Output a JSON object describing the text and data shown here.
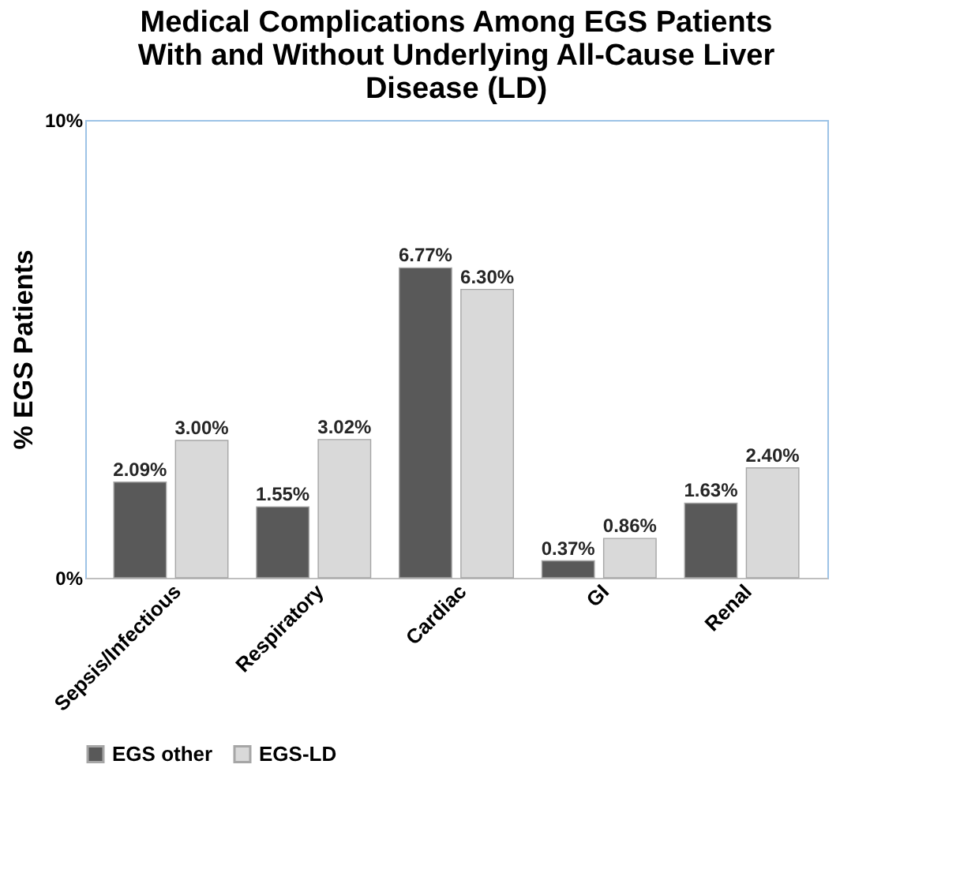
{
  "chart_data": {
    "type": "bar",
    "title": "Medical Complications Among EGS Patients With and Without Underlying All-Cause Liver Disease (LD)",
    "ylabel": "% EGS Patients",
    "categories": [
      "Sepsis/Infectious",
      "Respiratory",
      "Cardiac",
      "GI",
      "Renal"
    ],
    "series": [
      {
        "name": "EGS other",
        "color": "#595959",
        "values": [
          2.09,
          1.55,
          6.77,
          0.37,
          1.63
        ],
        "value_labels": [
          "2.09%",
          "1.55%",
          "6.77%",
          "0.37%",
          "1.63%"
        ]
      },
      {
        "name": "EGS-LD",
        "color": "#d9d9d9",
        "values": [
          3.0,
          3.02,
          6.3,
          0.86,
          2.4
        ],
        "value_labels": [
          "3.00%",
          "3.02%",
          "6.30%",
          "0.86%",
          "2.40%"
        ]
      }
    ],
    "ylim": [
      0,
      10
    ],
    "yticks": [
      {
        "value": 0,
        "label": "0%"
      },
      {
        "value": 10,
        "label": "10%"
      }
    ],
    "grid": false,
    "legend": "bottom"
  }
}
